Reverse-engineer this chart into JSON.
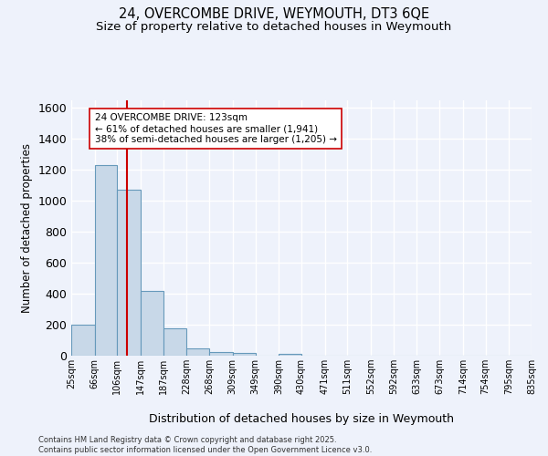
{
  "title": "24, OVERCOMBE DRIVE, WEYMOUTH, DT3 6QE",
  "subtitle": "Size of property relative to detached houses in Weymouth",
  "xlabel": "Distribution of detached houses by size in Weymouth",
  "ylabel": "Number of detached properties",
  "bin_edges": [
    25,
    66,
    106,
    147,
    187,
    228,
    268,
    309,
    349,
    390,
    430,
    471,
    511,
    552,
    592,
    633,
    673,
    714,
    754,
    795,
    835
  ],
  "bar_heights": [
    200,
    1230,
    1070,
    420,
    175,
    50,
    25,
    15,
    0,
    12,
    0,
    0,
    0,
    0,
    0,
    0,
    0,
    0,
    0,
    0
  ],
  "bar_color": "#c8d8e8",
  "bar_edgecolor": "#6699bb",
  "red_line_x": 123,
  "ylim": [
    0,
    1650
  ],
  "annotation_text": "24 OVERCOMBE DRIVE: 123sqm\n← 61% of detached houses are smaller (1,941)\n38% of semi-detached houses are larger (1,205) →",
  "annotation_box_color": "#ffffff",
  "annotation_box_edgecolor": "#cc0000",
  "red_line_color": "#cc0000",
  "footer_line1": "Contains HM Land Registry data © Crown copyright and database right 2025.",
  "footer_line2": "Contains public sector information licensed under the Open Government Licence v3.0.",
  "bg_color": "#eef2fb",
  "grid_color": "#ffffff",
  "title_fontsize": 10.5,
  "subtitle_fontsize": 9.5,
  "tick_labels": [
    "25sqm",
    "66sqm",
    "106sqm",
    "147sqm",
    "187sqm",
    "228sqm",
    "268sqm",
    "309sqm",
    "349sqm",
    "390sqm",
    "430sqm",
    "471sqm",
    "511sqm",
    "552sqm",
    "592sqm",
    "633sqm",
    "673sqm",
    "714sqm",
    "754sqm",
    "795sqm",
    "835sqm"
  ]
}
